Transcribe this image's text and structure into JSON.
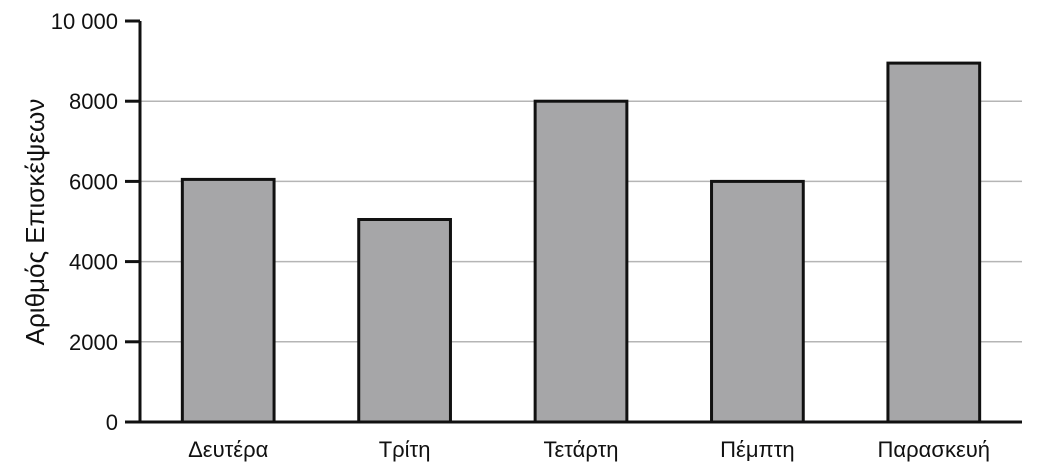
{
  "chart_data": {
    "type": "bar",
    "categories": [
      "Δευτέρα",
      "Τρίτη",
      "Τετάρτη",
      "Πέμπτη",
      "Παρασκευή"
    ],
    "values": [
      6050,
      5050,
      8000,
      6000,
      8950
    ],
    "title": "",
    "xlabel": "",
    "ylabel": "Αριθμός Επισκέψεων",
    "ylim": [
      0,
      10000
    ],
    "yticks": [
      0,
      2000,
      4000,
      6000,
      8000,
      10000
    ],
    "ytick_labels": [
      "0",
      "2000",
      "4000",
      "6000",
      "8000",
      "10 000"
    ],
    "grid": true,
    "legend": "none",
    "colors": {
      "bar_fill": "#a6a6a8",
      "bar_stroke": "#111111",
      "grid": "#b5b5b5",
      "axis": "#111111"
    }
  }
}
